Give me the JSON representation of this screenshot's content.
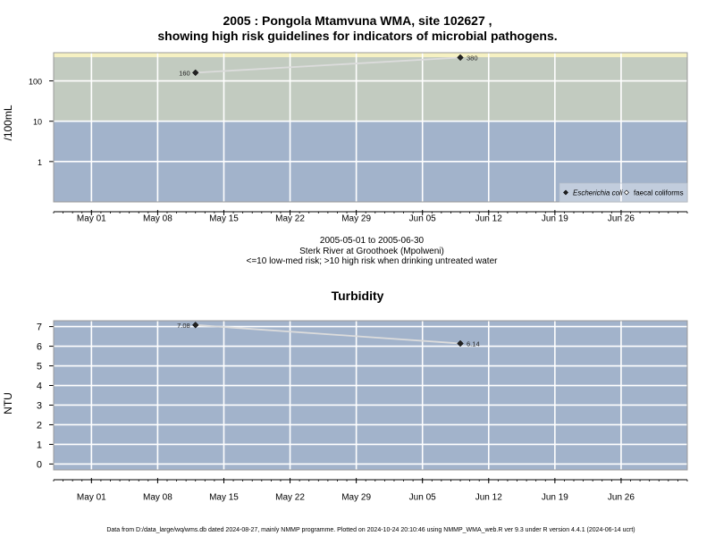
{
  "title": {
    "line1": "2005 : Pongola Mtamvuna WMA, site 102627 ,",
    "line2": "showing high risk guidelines for indicators of microbial pathogens."
  },
  "captions": {
    "date_range": "2005-05-01 to 2005-06-30",
    "site": "Sterk River at Groothoek (Mpolweni)",
    "guideline": "<=10 low-med risk; >10 high risk when drinking untreated water"
  },
  "footer": "Data from D:/data_large/wq/wms.db dated 2024-08-27, mainly NMMP programme. Plotted on 2024-10-24 20:10:46 using NMMP_WMA_web.R ver 9.3 under R version 4.4.1 (2024-06-14 ucrt)",
  "colors": {
    "low_band": "#a2b3cb",
    "high_band": "#c2cbc0",
    "top_strip": "#f6f1c2",
    "grid": "#ffffff",
    "line": "#dcdcdc",
    "point": "#222222"
  },
  "chart_data": [
    {
      "type": "line",
      "title": "",
      "xlabel": "",
      "ylabel": "/100mL",
      "y_scale": "log",
      "xlim": [
        "2005-04-27",
        "2005-07-03"
      ],
      "x_ticks": [
        "May 01",
        "May 08",
        "May 15",
        "May 22",
        "May 29",
        "Jun 05",
        "Jun 12",
        "Jun 19",
        "Jun 26"
      ],
      "y_ticks": [
        1,
        10,
        100
      ],
      "bands": [
        {
          "from": 0.1,
          "to": 10,
          "meaning": "low-med risk"
        },
        {
          "from": 10,
          "to": 500,
          "meaning": "high risk"
        }
      ],
      "legend_position": "bottom-right",
      "legend": [
        "Escherichia coli",
        "faecal coliforms"
      ],
      "series": [
        {
          "name": "Escherichia coli",
          "marker": "filled-diamond",
          "points": [
            {
              "x": "2005-05-12",
              "y": 160,
              "label": "160"
            },
            {
              "x": "2005-06-09",
              "y": 380,
              "label": "380"
            }
          ]
        }
      ]
    },
    {
      "type": "line",
      "title": "Turbidity",
      "xlabel": "",
      "ylabel": "NTU",
      "xlim": [
        "2005-04-27",
        "2005-07-03"
      ],
      "ylim": [
        -0.3,
        7.3
      ],
      "x_ticks": [
        "May 01",
        "May 08",
        "May 15",
        "May 22",
        "May 29",
        "Jun 05",
        "Jun 12",
        "Jun 19",
        "Jun 26"
      ],
      "y_ticks": [
        0,
        1,
        2,
        3,
        4,
        5,
        6,
        7
      ],
      "series": [
        {
          "name": "",
          "marker": "filled-diamond",
          "points": [
            {
              "x": "2005-05-12",
              "y": 7.08,
              "label": "7.08"
            },
            {
              "x": "2005-06-09",
              "y": 6.14,
              "label": "6.14"
            }
          ]
        }
      ]
    }
  ]
}
